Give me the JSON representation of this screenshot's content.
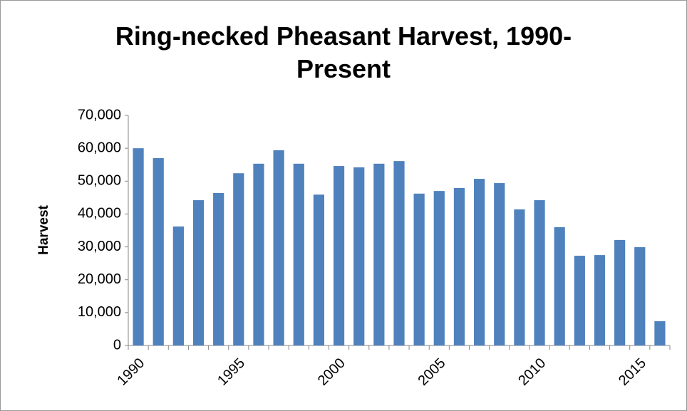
{
  "chart_data": {
    "type": "bar",
    "title": "Ring-necked Pheasant Harvest, 1990-Present",
    "y_label": "Harvest",
    "categories": [
      "1990",
      null,
      null,
      null,
      null,
      "1995",
      null,
      null,
      null,
      null,
      "2000",
      null,
      null,
      null,
      null,
      "2005",
      null,
      null,
      null,
      null,
      "2010",
      null,
      null,
      null,
      null,
      "2015",
      null
    ],
    "values": [
      60000,
      57000,
      36200,
      44200,
      46400,
      52400,
      55300,
      59400,
      55300,
      45900,
      54600,
      54200,
      55300,
      56100,
      46200,
      47000,
      47900,
      50700,
      49400,
      41400,
      44200,
      36000,
      27300,
      27500,
      32100,
      29900,
      7400
    ],
    "color": "#4f81bd",
    "ylim": [
      0,
      70000
    ],
    "yticks": [
      0,
      {
        "value": 10000,
        "label": "10,000"
      },
      {
        "value": 20000,
        "label": "20,000"
      },
      {
        "value": 30000,
        "label": "30,000"
      },
      {
        "value": 40000,
        "label": "40,000"
      },
      {
        "value": 50000,
        "label": "50,000"
      },
      {
        "value": 60000,
        "label": "60,000"
      },
      {
        "value": 70000,
        "label": "70,000"
      }
    ],
    "grid": false
  }
}
